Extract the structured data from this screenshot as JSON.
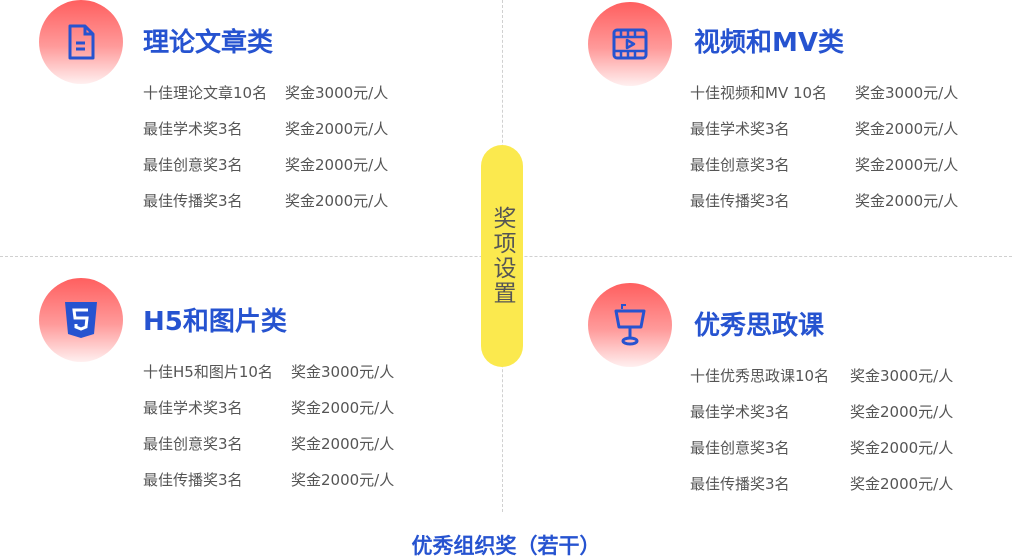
{
  "center_label": "奖项设置",
  "footer": "优秀组织奖（若干）",
  "colors": {
    "accent": "#2653d0",
    "pill": "#fbe94e",
    "text": "#555555"
  },
  "categories": [
    {
      "icon": "document-icon",
      "title": "理论文章类",
      "rows": [
        {
          "award": "十佳理论文章10名",
          "prize": "奖金3000元/人"
        },
        {
          "award": "最佳学术奖3名",
          "prize": "奖金2000元/人"
        },
        {
          "award": "最佳创意奖3名",
          "prize": "奖金2000元/人"
        },
        {
          "award": "最佳传播奖3名",
          "prize": "奖金2000元/人"
        }
      ]
    },
    {
      "icon": "video-icon",
      "title": "视频和MV类",
      "rows": [
        {
          "award": "十佳视频和MV 10名",
          "prize": "奖金3000元/人"
        },
        {
          "award": "最佳学术奖3名",
          "prize": "奖金2000元/人"
        },
        {
          "award": "最佳创意奖3名",
          "prize": "奖金2000元/人"
        },
        {
          "award": "最佳传播奖3名",
          "prize": "奖金2000元/人"
        }
      ]
    },
    {
      "icon": "html5-icon",
      "title": "H5和图片类",
      "rows": [
        {
          "award": "十佳H5和图片10名",
          "prize": "奖金3000元/人"
        },
        {
          "award": "最佳学术奖3名",
          "prize": "奖金2000元/人"
        },
        {
          "award": "最佳创意奖3名",
          "prize": "奖金2000元/人"
        },
        {
          "award": "最佳传播奖3名",
          "prize": "奖金2000元/人"
        }
      ]
    },
    {
      "icon": "podium-icon",
      "title": "优秀思政课",
      "rows": [
        {
          "award": "十佳优秀思政课10名",
          "prize": "奖金3000元/人"
        },
        {
          "award": "最佳学术奖3名",
          "prize": "奖金2000元/人"
        },
        {
          "award": "最佳创意奖3名",
          "prize": "奖金2000元/人"
        },
        {
          "award": "最佳传播奖3名",
          "prize": "奖金2000元/人"
        }
      ]
    }
  ]
}
